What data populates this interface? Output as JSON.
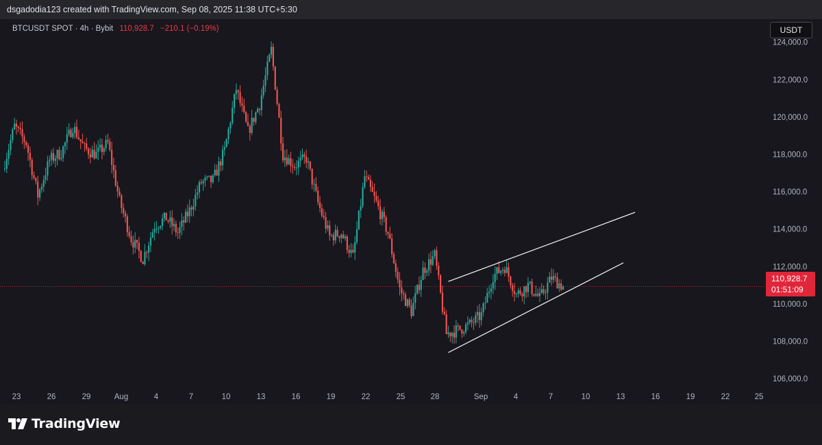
{
  "header": {
    "attribution": "dsgadodia123 created with TradingView.com, Sep 08, 2025 11:38 UTC+5:30"
  },
  "legend": {
    "symbol": "BTCUSDT SPOT · 4h · Bybit",
    "price": "110,928.7",
    "change": "−210.1 (−0.19%)"
  },
  "currency_button": "USDT",
  "price_tag": {
    "price": "110,928.7",
    "countdown": "01:51:09"
  },
  "footer": {
    "brand": "TradingView"
  },
  "colors": {
    "up": "#26a69a",
    "down": "#ef5350",
    "price_line": "#e2263a",
    "background": "#17171d",
    "trendline": "#e8e8e8"
  },
  "chart_data": {
    "type": "candlestick",
    "symbol": "BTCUSDT",
    "interval": "4h",
    "exchange": "Bybit",
    "y_ticks": [
      "124,000.0",
      "122,000.0",
      "120,000.0",
      "118,000.0",
      "116,000.0",
      "114,000.0",
      "112,000.0",
      "110,000.0",
      "108,000.0",
      "106,000.0"
    ],
    "ylim": [
      104650,
      124500
    ],
    "x_ticks": [
      "23",
      "26",
      "29",
      "Aug",
      "4",
      "7",
      "10",
      "13",
      "16",
      "19",
      "22",
      "25",
      "28",
      "Sep",
      "4",
      "7",
      "10",
      "13",
      "16",
      "19",
      "22",
      "25"
    ],
    "last_price": 110928.7,
    "series": [
      {
        "name": "close",
        "approx_path": [
          [
            "Jul 22",
            117200
          ],
          [
            "Jul 23",
            119500
          ],
          [
            "Jul 24",
            118600
          ],
          [
            "Jul 25",
            115800
          ],
          [
            "Jul 26",
            117700
          ],
          [
            "Jul 27",
            118100
          ],
          [
            "Jul 28",
            119500
          ],
          [
            "Jul 29",
            118300
          ],
          [
            "Jul 30",
            118000
          ],
          [
            "Jul 31",
            118600
          ],
          [
            "Aug 1",
            115500
          ],
          [
            "Aug 2",
            113500
          ],
          [
            "Aug 3",
            112400
          ],
          [
            "Aug 4",
            114200
          ],
          [
            "Aug 5",
            114600
          ],
          [
            "Aug 6",
            113800
          ],
          [
            "Aug 7",
            115000
          ],
          [
            "Aug 8",
            116500
          ],
          [
            "Aug 9",
            116600
          ],
          [
            "Aug 10",
            118200
          ],
          [
            "Aug 11",
            121500
          ],
          [
            "Aug 12",
            119200
          ],
          [
            "Aug 13",
            120700
          ],
          [
            "Aug 14",
            123600
          ],
          [
            "Aug 15",
            118000
          ],
          [
            "Aug 16",
            117400
          ],
          [
            "Aug 17",
            117800
          ],
          [
            "Aug 18",
            115400
          ],
          [
            "Aug 19",
            113600
          ],
          [
            "Aug 20",
            113800
          ],
          [
            "Aug 21",
            112500
          ],
          [
            "Aug 22",
            116800
          ],
          [
            "Aug 23",
            115400
          ],
          [
            "Aug 24",
            113800
          ],
          [
            "Aug 25",
            110800
          ],
          [
            "Aug 26",
            109600
          ],
          [
            "Aug 27",
            111800
          ],
          [
            "Aug 28",
            112600
          ],
          [
            "Aug 29",
            108400
          ],
          [
            "Aug 30",
            108600
          ],
          [
            "Aug 31",
            108900
          ],
          [
            "Sep 1",
            109400
          ],
          [
            "Sep 2",
            111500
          ],
          [
            "Sep 3",
            112000
          ],
          [
            "Sep 4",
            110500
          ],
          [
            "Sep 5",
            111000
          ],
          [
            "Sep 6",
            110300
          ],
          [
            "Sep 7",
            111400
          ],
          [
            "Sep 8",
            110928.7
          ]
        ]
      }
    ],
    "trendlines": [
      {
        "name": "upper",
        "from": [
          "Aug 29",
          111200
        ],
        "to": [
          "Sep 14",
          114900
        ]
      },
      {
        "name": "lower",
        "from": [
          "Aug 29",
          107400
        ],
        "to": [
          "Sep 13",
          112200
        ]
      }
    ]
  }
}
